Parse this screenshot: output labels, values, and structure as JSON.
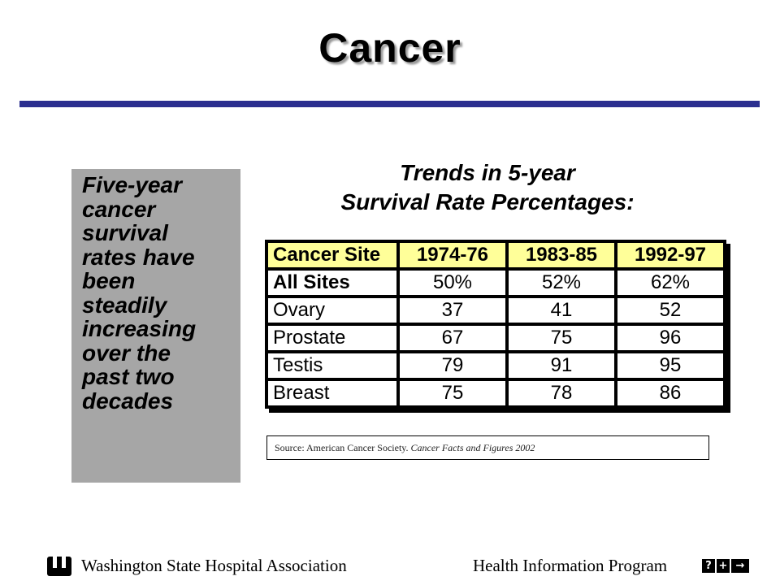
{
  "slide": {
    "title": "Cancer",
    "side_note": "Five-year\ncancer\nsurvival\nrates have\nbeen\nsteadily\nincreasing\nover the\npast two\ndecades"
  },
  "table": {
    "title_line1": "Trends in 5-year",
    "title_line2": "Survival Rate Percentages:",
    "headers": [
      "Cancer Site",
      "1974-76",
      "1983-85",
      "1992-97"
    ],
    "rows": [
      {
        "site": "All Sites",
        "values": [
          "50%",
          "52%",
          "62%"
        ]
      },
      {
        "site": "Ovary",
        "values": [
          "37",
          "41",
          "52"
        ]
      },
      {
        "site": "Prostate",
        "values": [
          "67",
          "75",
          "96"
        ]
      },
      {
        "site": "Testis",
        "values": [
          "79",
          "91",
          "95"
        ]
      },
      {
        "site": "Breast",
        "values": [
          "75",
          "78",
          "86"
        ]
      }
    ],
    "source_prefix": "Source: American Cancer Society. ",
    "source_title": "Cancer Facts and Figures 2002"
  },
  "footer": {
    "left_text": "Washington State Hospital Association",
    "right_text": "Health Information Program",
    "nav": [
      "?",
      "+",
      "→"
    ]
  },
  "colors": {
    "title_rule": "#2b2f8f",
    "side_box": "#a6a6a6",
    "header_fill": "#ffff99"
  },
  "icons": [
    "wsha-logo-icon",
    "help-icon",
    "plus-icon",
    "next-arrow-icon"
  ]
}
